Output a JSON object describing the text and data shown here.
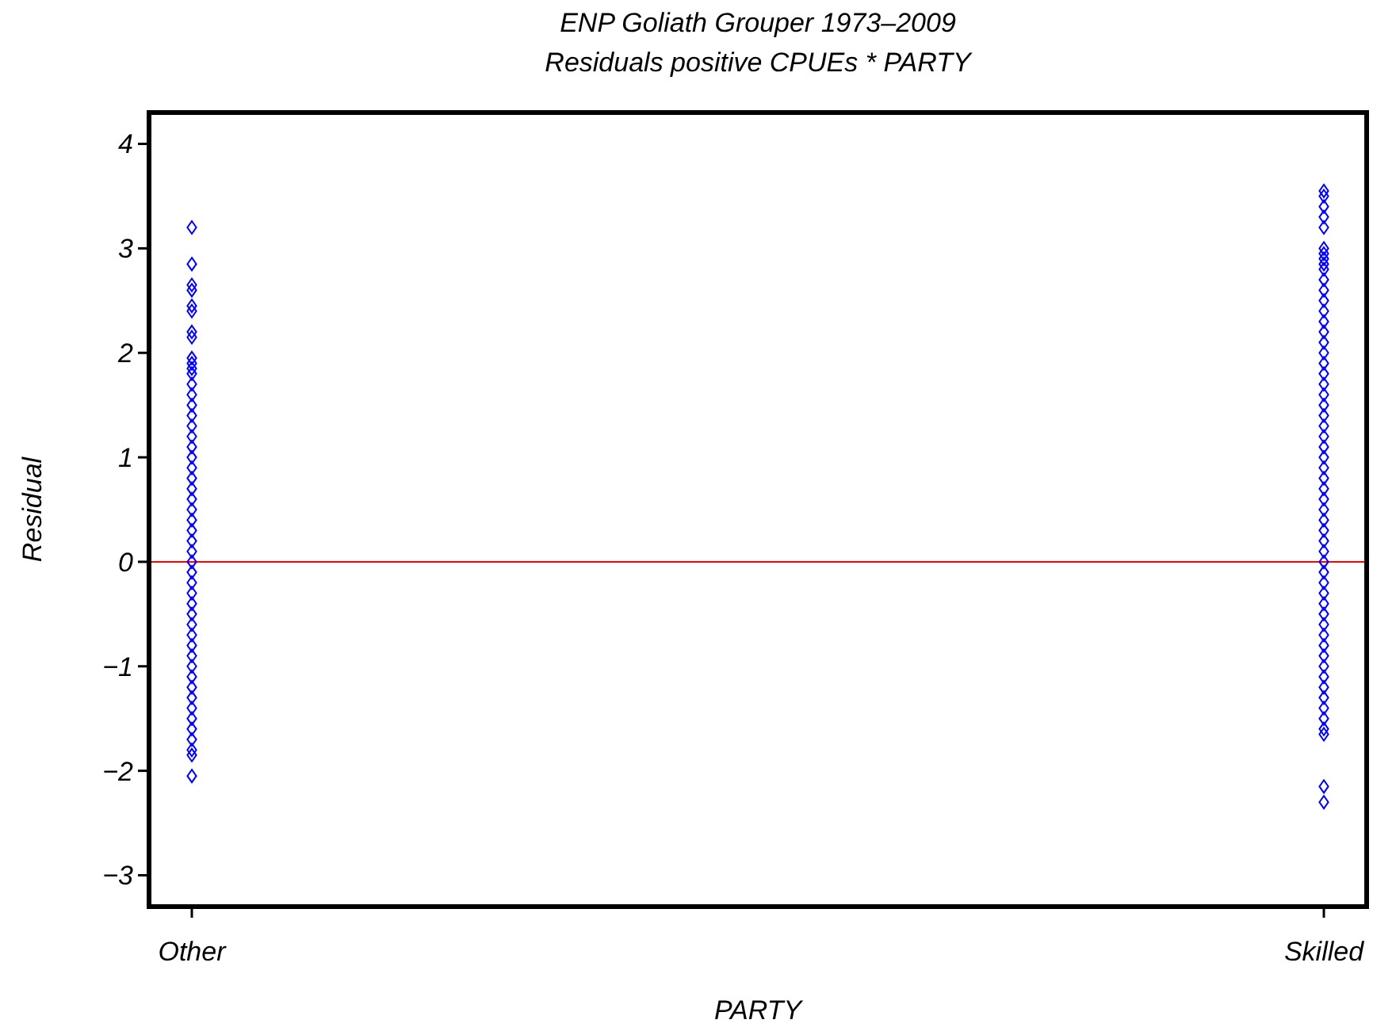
{
  "chart_data": {
    "type": "scatter",
    "title": "ENP Goliath Grouper 1973–2009",
    "subtitle": "Residuals positive CPUEs * PARTY",
    "xlabel": "PARTY",
    "ylabel": "Residual",
    "categories": [
      "Other",
      "Skilled"
    ],
    "ylim": [
      -3.3,
      4.3
    ],
    "yticks": [
      {
        "value": -3,
        "label": "−3"
      },
      {
        "value": -2,
        "label": "−2"
      },
      {
        "value": -1,
        "label": "−1"
      },
      0,
      1,
      2,
      3,
      4
    ],
    "marker": "diamond",
    "grid": false,
    "ref_lines": [
      {
        "axis": "y",
        "value": 0,
        "color": "#ff0000"
      }
    ],
    "series": [
      {
        "color": "#0000ff",
        "x": [
          "Other",
          "Other",
          "Other",
          "Other",
          "Other",
          "Other",
          "Other",
          "Other",
          "Other",
          "Other",
          "Other",
          "Other",
          "Other",
          "Other",
          "Other",
          "Other",
          "Other",
          "Other",
          "Other",
          "Other",
          "Other",
          "Other",
          "Other",
          "Other",
          "Other",
          "Other",
          "Other",
          "Other",
          "Other",
          "Other",
          "Other",
          "Other",
          "Other",
          "Other",
          "Other",
          "Other",
          "Other",
          "Other",
          "Other",
          "Other",
          "Other",
          "Other",
          "Other",
          "Other",
          "Other",
          "Other",
          "Other",
          "Other",
          "Other",
          "Other"
        ],
        "values": [
          3.2,
          2.85,
          2.65,
          2.6,
          2.45,
          2.4,
          2.2,
          2.15,
          1.95,
          1.9,
          1.85,
          1.8,
          1.7,
          1.6,
          1.5,
          1.4,
          1.3,
          1.2,
          1.1,
          1.0,
          0.9,
          0.8,
          0.7,
          0.6,
          0.5,
          0.4,
          0.3,
          0.2,
          0.1,
          0.0,
          -0.1,
          -0.2,
          -0.3,
          -0.4,
          -0.5,
          -0.6,
          -0.7,
          -0.8,
          -0.9,
          -1.0,
          -1.1,
          -1.2,
          -1.3,
          -1.4,
          -1.5,
          -1.6,
          -1.7,
          -1.8,
          -1.85,
          -2.05
        ]
      },
      {
        "color": "#0000ff",
        "x": [
          "Skilled",
          "Skilled",
          "Skilled",
          "Skilled",
          "Skilled",
          "Skilled",
          "Skilled",
          "Skilled",
          "Skilled",
          "Skilled",
          "Skilled",
          "Skilled",
          "Skilled",
          "Skilled",
          "Skilled",
          "Skilled",
          "Skilled",
          "Skilled",
          "Skilled",
          "Skilled",
          "Skilled",
          "Skilled",
          "Skilled",
          "Skilled",
          "Skilled",
          "Skilled",
          "Skilled",
          "Skilled",
          "Skilled",
          "Skilled",
          "Skilled",
          "Skilled",
          "Skilled",
          "Skilled",
          "Skilled",
          "Skilled",
          "Skilled",
          "Skilled",
          "Skilled",
          "Skilled",
          "Skilled",
          "Skilled",
          "Skilled",
          "Skilled",
          "Skilled",
          "Skilled",
          "Skilled",
          "Skilled",
          "Skilled",
          "Skilled",
          "Skilled",
          "Skilled",
          "Skilled",
          "Skilled",
          "Skilled",
          "Skilled",
          "Skilled"
        ],
        "values": [
          3.55,
          3.5,
          3.4,
          3.3,
          3.2,
          3.0,
          2.95,
          2.9,
          2.85,
          2.8,
          2.7,
          2.6,
          2.5,
          2.4,
          2.3,
          2.2,
          2.1,
          2.0,
          1.9,
          1.8,
          1.7,
          1.6,
          1.5,
          1.4,
          1.3,
          1.2,
          1.1,
          1.0,
          0.9,
          0.8,
          0.7,
          0.6,
          0.5,
          0.4,
          0.3,
          0.2,
          0.1,
          0.0,
          -0.1,
          -0.2,
          -0.3,
          -0.4,
          -0.5,
          -0.6,
          -0.7,
          -0.8,
          -0.9,
          -1.0,
          -1.1,
          -1.2,
          -1.3,
          -1.4,
          -1.5,
          -1.6,
          -1.65,
          -2.15,
          -2.3
        ]
      }
    ]
  }
}
